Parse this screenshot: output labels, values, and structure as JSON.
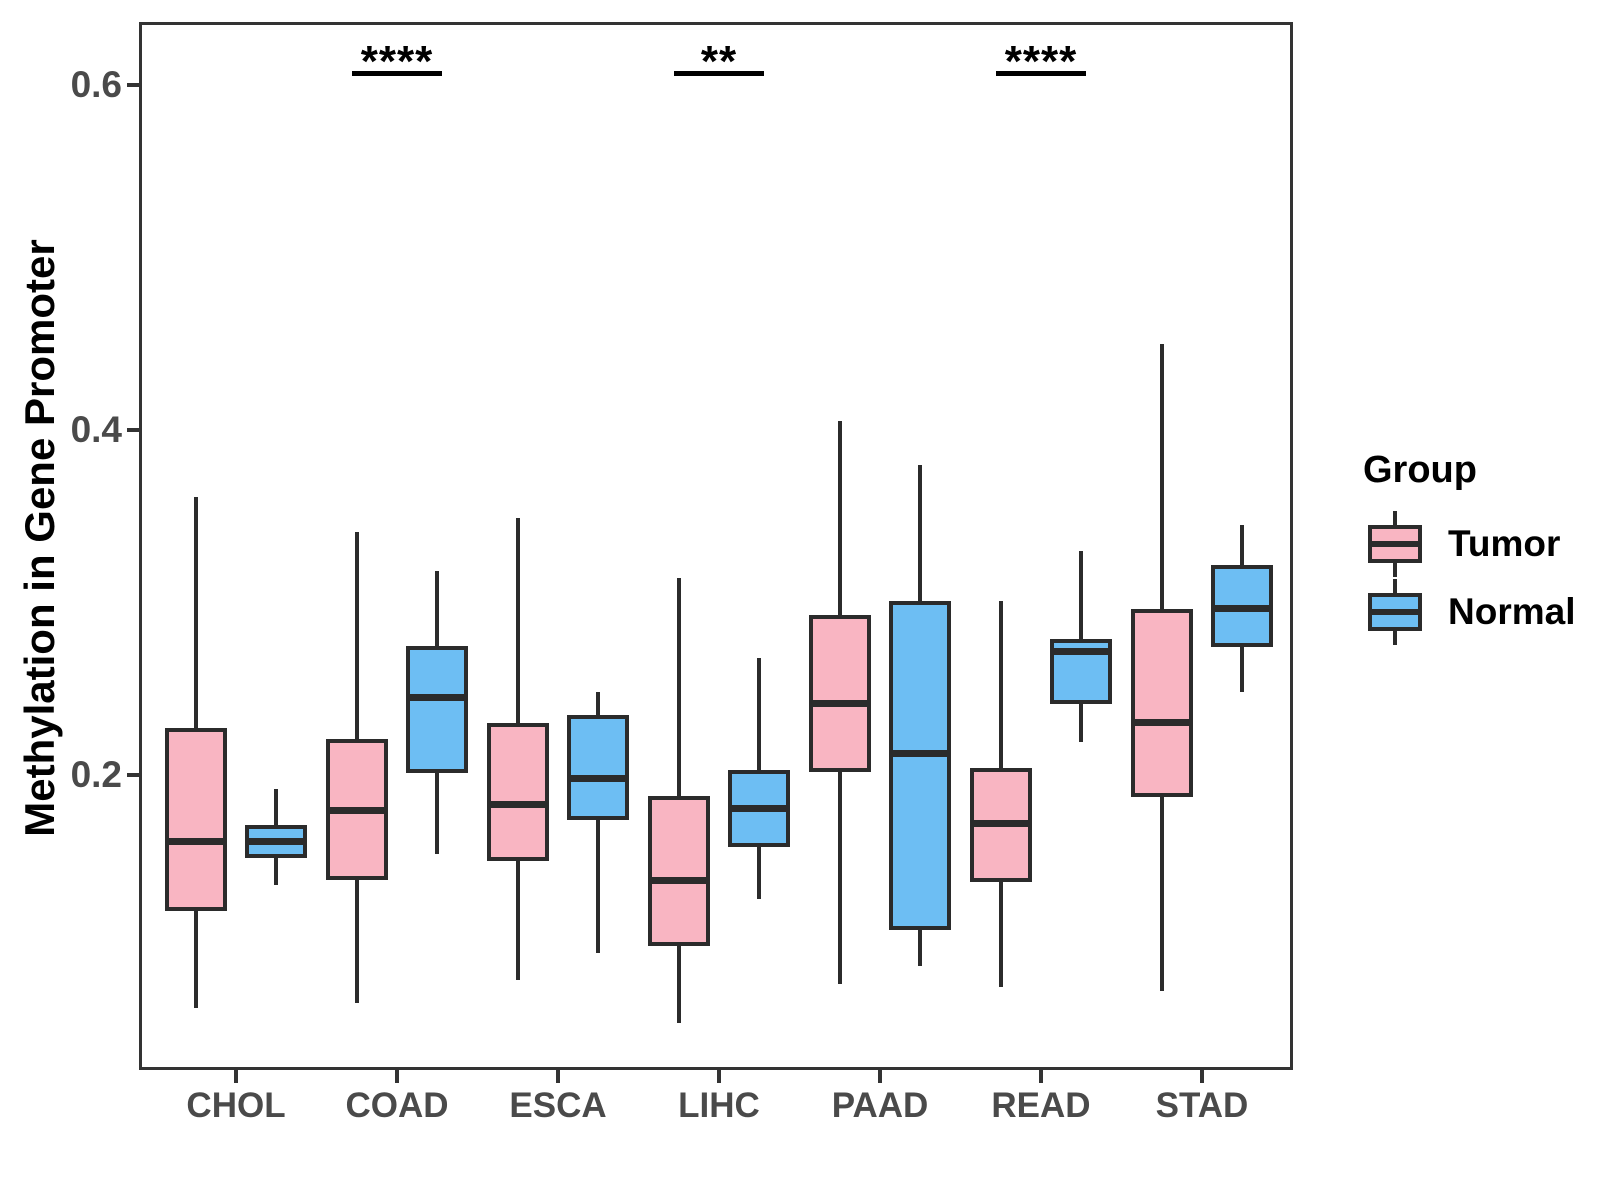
{
  "chart_data": {
    "type": "boxplot",
    "title": "",
    "ylabel": "Methylation in Gene Promoter",
    "xlabel": "",
    "categories": [
      "CHOL",
      "COAD",
      "ESCA",
      "LIHC",
      "PAAD",
      "READ",
      "STAD"
    ],
    "y_ticks": {
      "values": [
        0.2,
        0.4,
        0.6
      ],
      "labels": [
        "0.2",
        "0.4",
        "0.6"
      ]
    },
    "ylim": [
      0.029,
      0.637
    ],
    "grid": false,
    "legend": {
      "title": "Group",
      "position": "right",
      "entries": [
        {
          "label": "Tumor",
          "color": "#F9B5C2"
        },
        {
          "label": "Normal",
          "color": "#6DBEF3"
        }
      ]
    },
    "series": [
      {
        "name": "Tumor",
        "color": "#F9B5C2",
        "boxes": [
          {
            "category": "CHOL",
            "whisker_low": 0.065,
            "q1": 0.121,
            "median": 0.162,
            "q3": 0.227,
            "whisker_high": 0.361
          },
          {
            "category": "COAD",
            "whisker_low": 0.068,
            "q1": 0.139,
            "median": 0.18,
            "q3": 0.221,
            "whisker_high": 0.341
          },
          {
            "category": "ESCA",
            "whisker_low": 0.081,
            "q1": 0.15,
            "median": 0.183,
            "q3": 0.23,
            "whisker_high": 0.349
          },
          {
            "category": "LIHC",
            "whisker_low": 0.056,
            "q1": 0.101,
            "median": 0.139,
            "q3": 0.188,
            "whisker_high": 0.314
          },
          {
            "category": "PAAD",
            "whisker_low": 0.079,
            "q1": 0.202,
            "median": 0.242,
            "q3": 0.293,
            "whisker_high": 0.405
          },
          {
            "category": "READ",
            "whisker_low": 0.077,
            "q1": 0.138,
            "median": 0.172,
            "q3": 0.204,
            "whisker_high": 0.301
          },
          {
            "category": "STAD",
            "whisker_low": 0.075,
            "q1": 0.187,
            "median": 0.231,
            "q3": 0.296,
            "whisker_high": 0.45
          }
        ]
      },
      {
        "name": "Normal",
        "color": "#6DBEF3",
        "boxes": [
          {
            "category": "CHOL",
            "whisker_low": 0.136,
            "q1": 0.152,
            "median": 0.162,
            "q3": 0.171,
            "whisker_high": 0.192
          },
          {
            "category": "COAD",
            "whisker_low": 0.154,
            "q1": 0.201,
            "median": 0.245,
            "q3": 0.275,
            "whisker_high": 0.318
          },
          {
            "category": "ESCA",
            "whisker_low": 0.097,
            "q1": 0.174,
            "median": 0.198,
            "q3": 0.235,
            "whisker_high": 0.248
          },
          {
            "category": "LIHC",
            "whisker_low": 0.128,
            "q1": 0.158,
            "median": 0.181,
            "q3": 0.203,
            "whisker_high": 0.268
          },
          {
            "category": "PAAD",
            "whisker_low": 0.089,
            "q1": 0.11,
            "median": 0.213,
            "q3": 0.301,
            "whisker_high": 0.38
          },
          {
            "category": "READ",
            "whisker_low": 0.219,
            "q1": 0.241,
            "median": 0.272,
            "q3": 0.279,
            "whisker_high": 0.33
          },
          {
            "category": "STAD",
            "whisker_low": 0.248,
            "q1": 0.274,
            "median": 0.297,
            "q3": 0.322,
            "whisker_high": 0.345
          }
        ]
      }
    ],
    "significance_markers": [
      {
        "category": "COAD",
        "label": "****",
        "bar_y": 0.607
      },
      {
        "category": "LIHC",
        "label": "**",
        "bar_y": 0.607
      },
      {
        "category": "READ",
        "label": "****",
        "bar_y": 0.607
      }
    ]
  }
}
